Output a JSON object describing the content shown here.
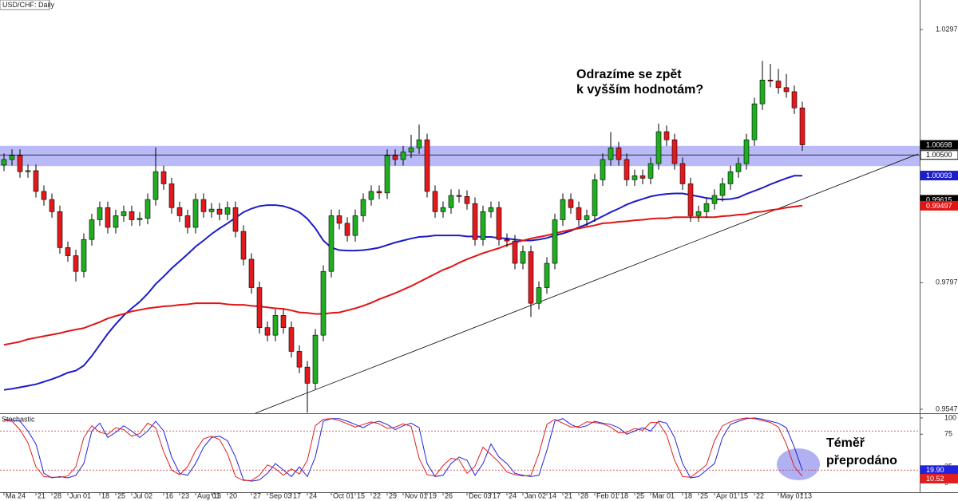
{
  "chart_data": {
    "type": "candlestick",
    "title": "USD/CHF: Daily",
    "categories": [
      "Ma 24",
      null,
      null,
      null,
      "21",
      null,
      "28",
      null,
      "Jun 01",
      null,
      null,
      null,
      "18",
      null,
      "25",
      null,
      "Jul 02",
      null,
      null,
      null,
      "16",
      null,
      "23",
      null,
      "Aug 01",
      null,
      "13",
      null,
      "20",
      null,
      null,
      "27",
      null,
      "Sep 03",
      null,
      null,
      "17",
      null,
      "24",
      null,
      null,
      "Oct 01",
      null,
      null,
      "15",
      null,
      "22",
      null,
      "29",
      null,
      "Nov 01",
      null,
      null,
      "19",
      null,
      "26",
      null,
      null,
      "Dec 03",
      null,
      null,
      "17",
      null,
      "24",
      null,
      "Jan 02",
      null,
      null,
      "14",
      null,
      "21",
      null,
      "28",
      null,
      "Feb 01",
      null,
      null,
      "18",
      null,
      "25",
      null,
      "Mar 01",
      null,
      null,
      null,
      "18",
      null,
      "25",
      null,
      "Apr 01",
      null,
      null,
      "15",
      null,
      "22",
      null,
      null,
      "May 01",
      null,
      null,
      "13"
    ],
    "open": [
      1.003,
      1.0041,
      1.0049,
      1.0017,
      1.0019,
      0.9978,
      0.9962,
      0.9938,
      0.9867,
      0.9851,
      0.982,
      0.9883,
      0.9922,
      0.9946,
      0.9907,
      0.993,
      0.9938,
      0.9922,
      0.9925,
      0.9962,
      1.0017,
      0.9993,
      0.9946,
      0.993,
      0.9907,
      0.9962,
      0.9938,
      0.9943,
      0.9933,
      0.9946,
      0.9899,
      0.9844,
      0.9788,
      0.9709,
      0.9694,
      0.9733,
      0.9709,
      0.9662,
      0.9631,
      0.9599,
      0.9694,
      0.982,
      0.993,
      0.9915,
      0.9891,
      0.993,
      0.9962,
      0.9978,
      0.9975,
      1.0049,
      1.0041,
      1.0056,
      1.0064,
      1.008,
      0.9978,
      0.9938,
      0.9946,
      0.997,
      0.9968,
      0.9954,
      0.9883,
      0.9938,
      0.9946,
      0.9883,
      0.988,
      0.9836,
      0.9859,
      0.9757,
      0.9788,
      0.9836,
      0.9922,
      0.9962,
      0.9946,
      0.9922,
      0.993,
      1.0001,
      1.0041,
      1.0064,
      1.0041,
      1.0001,
      1.0009,
      1.0004,
      1.0033,
      1.0096,
      1.008,
      1.0033,
      0.9993,
      0.993,
      0.9938,
      0.9954,
      0.997,
      0.9993,
      1.0017,
      1.0033,
      1.008,
      1.0151,
      1.0198,
      1.0196,
      1.0183,
      1.0175,
      1.0143
    ],
    "high": [
      1.0053,
      1.0061,
      1.0061,
      1.0031,
      1.0031,
      0.999,
      0.9974,
      0.995,
      0.9879,
      0.9863,
      0.9895,
      0.9934,
      0.9958,
      0.9958,
      0.9942,
      0.995,
      0.995,
      0.9937,
      0.9974,
      1.0065,
      1.0029,
      1.0005,
      0.9958,
      0.9942,
      0.9974,
      0.9974,
      0.9955,
      0.9955,
      0.9958,
      0.9958,
      0.9911,
      0.9856,
      0.98,
      0.9721,
      0.9745,
      0.9745,
      0.9721,
      0.9674,
      0.9643,
      0.9706,
      0.9832,
      0.9942,
      0.9942,
      0.9927,
      0.9942,
      0.9974,
      0.999,
      0.999,
      1.0061,
      1.0061,
      1.0068,
      1.009,
      1.011,
      1.0092,
      0.999,
      0.9958,
      0.9982,
      0.9982,
      0.998,
      0.9966,
      0.995,
      0.9958,
      0.9958,
      0.9895,
      0.9892,
      0.9871,
      0.9871,
      0.98,
      0.9848,
      0.9934,
      0.9974,
      0.9974,
      0.9958,
      0.9942,
      1.0013,
      1.0053,
      1.0095,
      1.0076,
      1.0053,
      1.0021,
      1.0021,
      1.0045,
      1.0112,
      1.0108,
      1.0092,
      1.0045,
      1.0005,
      0.995,
      0.9966,
      0.9982,
      1.0005,
      1.0029,
      1.0045,
      1.0092,
      1.0163,
      1.0236,
      1.023,
      1.022,
      1.021,
      1.0187,
      1.0155
    ],
    "low": [
      1.0018,
      1.0029,
      1.0005,
      1.0005,
      0.9966,
      0.995,
      0.9926,
      0.9855,
      0.9839,
      0.98,
      0.9808,
      0.9871,
      0.991,
      0.9895,
      0.9895,
      0.9918,
      0.991,
      0.991,
      0.9913,
      0.995,
      0.9981,
      0.9934,
      0.9918,
      0.9895,
      0.9895,
      0.9926,
      0.9926,
      0.9921,
      0.9921,
      0.9887,
      0.9832,
      0.9776,
      0.9697,
      0.9682,
      0.9682,
      0.9697,
      0.965,
      0.9619,
      0.9541,
      0.9587,
      0.9682,
      0.9808,
      0.9903,
      0.9879,
      0.9879,
      0.9918,
      0.995,
      0.9963,
      0.9963,
      1.0029,
      1.0029,
      1.0044,
      1.0052,
      0.9966,
      0.9926,
      0.9926,
      0.9934,
      0.9956,
      0.9942,
      0.9871,
      0.9871,
      0.9926,
      0.9871,
      0.9868,
      0.9824,
      0.9824,
      0.973,
      0.9745,
      0.9776,
      0.9824,
      0.991,
      0.9934,
      0.991,
      0.991,
      0.9918,
      0.9989,
      1.0029,
      1.0029,
      0.9989,
      0.9989,
      0.9992,
      0.9992,
      1.0021,
      1.0068,
      1.0021,
      0.9981,
      0.9918,
      0.9918,
      0.9926,
      0.9942,
      0.9958,
      0.9981,
      1.0005,
      1.0021,
      1.0068,
      1.0139,
      1.0184,
      1.0171,
      1.0163,
      1.0131,
      1.0058
    ],
    "close": [
      1.0041,
      1.0049,
      1.0017,
      1.0019,
      0.9978,
      0.9962,
      0.9938,
      0.9867,
      0.9851,
      0.982,
      0.9883,
      0.9922,
      0.9946,
      0.9907,
      0.993,
      0.9938,
      0.9922,
      0.9925,
      0.9962,
      1.0017,
      0.9993,
      0.9946,
      0.993,
      0.9907,
      0.9962,
      0.9938,
      0.9943,
      0.9933,
      0.9946,
      0.9899,
      0.9844,
      0.9788,
      0.9709,
      0.9694,
      0.9733,
      0.9709,
      0.9662,
      0.9631,
      0.9599,
      0.9694,
      0.982,
      0.993,
      0.9915,
      0.9891,
      0.993,
      0.9962,
      0.9978,
      0.9975,
      1.0049,
      1.0041,
      1.0056,
      1.0064,
      1.008,
      0.9978,
      0.9938,
      0.9946,
      0.997,
      0.9968,
      0.9954,
      0.9883,
      0.9938,
      0.9946,
      0.9883,
      0.988,
      0.9836,
      0.9859,
      0.9757,
      0.9788,
      0.9836,
      0.9922,
      0.9962,
      0.9946,
      0.9922,
      0.993,
      1.0001,
      1.0041,
      1.0064,
      1.0041,
      1.0001,
      1.0009,
      1.0004,
      1.0033,
      1.0096,
      1.008,
      1.0033,
      0.9993,
      0.993,
      0.9938,
      0.9954,
      0.997,
      0.9993,
      1.0017,
      1.0033,
      1.008,
      1.0151,
      1.0198,
      1.0196,
      1.0183,
      1.0175,
      1.0143,
      1.007
    ],
    "up_color": "#1fae1f",
    "down_color": "#e3191c",
    "ylim": [
      0.95398,
      1.03561
    ],
    "yticks": [
      0.95477,
      0.97977,
      1.02977
    ],
    "overlays": [
      {
        "color": "#1c1cc8",
        "values": [
          0.9586,
          0.9588,
          0.9591,
          0.9594,
          0.9597,
          0.9602,
          0.9607,
          0.9613,
          0.962,
          0.9624,
          0.9634,
          0.9653,
          0.9675,
          0.9697,
          0.9716,
          0.9733,
          0.9747,
          0.976,
          0.9776,
          0.9795,
          0.981,
          0.9826,
          0.984,
          0.9854,
          0.9869,
          0.9881,
          0.9894,
          0.9905,
          0.9915,
          0.9926,
          0.9937,
          0.9944,
          0.9949,
          0.9951,
          0.9951,
          0.9949,
          0.9944,
          0.9937,
          0.9924,
          0.9905,
          0.9881,
          0.9867,
          0.9862,
          0.9861,
          0.9861,
          0.9862,
          0.9864,
          0.9867,
          0.9872,
          0.9877,
          0.9881,
          0.9885,
          0.9888,
          0.9889,
          0.9891,
          0.9891,
          0.9891,
          0.9891,
          0.9889,
          0.9889,
          0.9888,
          0.9888,
          0.9886,
          0.9885,
          0.9883,
          0.9881,
          0.9881,
          0.9883,
          0.9886,
          0.9891,
          0.9895,
          0.99,
          0.9907,
          0.9913,
          0.9921,
          0.9929,
          0.9937,
          0.9944,
          0.9952,
          0.9958,
          0.9963,
          0.9968,
          0.9971,
          0.9973,
          0.9974,
          0.9974,
          0.9971,
          0.9968,
          0.9965,
          0.9963,
          0.9962,
          0.9963,
          0.9966,
          0.9973,
          0.9979,
          0.9985,
          0.9992,
          0.9998,
          1.0004,
          1.0009,
          1.0009
        ]
      },
      {
        "color": "#e01414",
        "values": [
          0.9675,
          0.9678,
          0.9681,
          0.9686,
          0.9689,
          0.9692,
          0.9695,
          0.9698,
          0.9702,
          0.9705,
          0.9708,
          0.9714,
          0.972,
          0.9727,
          0.9732,
          0.9736,
          0.9741,
          0.9744,
          0.9747,
          0.9749,
          0.9751,
          0.9752,
          0.9754,
          0.9755,
          0.9757,
          0.9757,
          0.9757,
          0.9757,
          0.9755,
          0.9754,
          0.9754,
          0.9752,
          0.9751,
          0.9749,
          0.9747,
          0.9746,
          0.9743,
          0.9739,
          0.9738,
          0.9736,
          0.9736,
          0.9738,
          0.9739,
          0.9743,
          0.9747,
          0.9752,
          0.9758,
          0.9765,
          0.9771,
          0.9777,
          0.9784,
          0.9791,
          0.9799,
          0.9807,
          0.9815,
          0.9823,
          0.9829,
          0.9837,
          0.9844,
          0.985,
          0.9856,
          0.9861,
          0.9866,
          0.9872,
          0.9877,
          0.9881,
          0.9885,
          0.9888,
          0.9891,
          0.9895,
          0.9899,
          0.9902,
          0.9905,
          0.9908,
          0.9911,
          0.9915,
          0.9916,
          0.9918,
          0.9919,
          0.9921,
          0.9922,
          0.9924,
          0.9925,
          0.9925,
          0.9927,
          0.9927,
          0.9927,
          0.9927,
          0.9927,
          0.9927,
          0.9929,
          0.993,
          0.9932,
          0.9933,
          0.9937,
          0.9938,
          0.9941,
          0.9943,
          0.9946,
          0.9948,
          0.995
        ]
      }
    ],
    "zone": [
      1.0028,
      1.0068
    ],
    "zone_color": "#8c8cf5",
    "level": {
      "value": 1.005,
      "label": "1.00500"
    },
    "trendline": {
      "x": [
        31.5,
        114.5
      ],
      "y": [
        0.954,
        1.0052
      ]
    },
    "price_labels": [
      {
        "value": 1.00698,
        "color": "#000000"
      },
      {
        "value": 1.00093,
        "color": "#1c1cc8"
      },
      {
        "value": 0.99615,
        "color": "#000000"
      },
      {
        "value": 0.99497,
        "color": "#e01414"
      }
    ],
    "annotations": [
      {
        "lines": [
          "Odrazíme se zpět",
          "k vyšším hodnotám?"
        ]
      },
      {
        "lines": [
          "Téměř",
          "přeprodáno"
        ]
      }
    ],
    "stochastic": {
      "title": "Stochastic",
      "ylim": [
        -14,
        106
      ],
      "yticks": [
        0,
        25,
        75,
        100
      ],
      "levels": [
        20,
        80
      ],
      "series": [
        {
          "color": "#2222dd",
          "values": [
            98,
            97,
            95,
            80,
            60,
            15,
            8,
            10,
            8,
            12,
            30,
            80,
            92,
            70,
            78,
            88,
            80,
            70,
            80,
            95,
            80,
            40,
            15,
            12,
            30,
            55,
            70,
            72,
            65,
            40,
            5,
            3,
            5,
            15,
            30,
            20,
            10,
            25,
            10,
            40,
            95,
            99,
            99,
            95,
            90,
            85,
            92,
            95,
            90,
            82,
            88,
            92,
            85,
            30,
            10,
            12,
            30,
            40,
            35,
            12,
            30,
            60,
            40,
            30,
            15,
            12,
            10,
            12,
            50,
            95,
            99,
            90,
            85,
            88,
            95,
            92,
            90,
            85,
            75,
            80,
            85,
            80,
            95,
            92,
            70,
            30,
            8,
            10,
            20,
            30,
            70,
            90,
            95,
            99,
            100,
            98,
            95,
            92,
            85,
            55,
            19.9
          ]
        },
        {
          "color": "#e02020",
          "values": [
            97,
            95,
            82,
            62,
            25,
            10,
            9,
            9,
            11,
            25,
            70,
            88,
            78,
            75,
            85,
            82,
            72,
            76,
            92,
            85,
            48,
            20,
            13,
            25,
            50,
            68,
            72,
            67,
            45,
            10,
            4,
            4,
            12,
            28,
            22,
            12,
            22,
            14,
            35,
            88,
            98,
            99,
            96,
            91,
            86,
            90,
            94,
            91,
            84,
            86,
            91,
            87,
            38,
            13,
            11,
            27,
            38,
            36,
            15,
            26,
            55,
            44,
            32,
            17,
            13,
            11,
            12,
            45,
            90,
            98,
            92,
            86,
            87,
            94,
            93,
            91,
            86,
            77,
            78,
            84,
            81,
            93,
            93,
            74,
            35,
            10,
            9,
            18,
            28,
            65,
            88,
            94,
            98,
            100,
            99,
            96,
            93,
            86,
            60,
            25,
            10.52
          ]
        }
      ],
      "price_labels": [
        {
          "value": 19.9,
          "label": "19.90",
          "color": "#2222dd"
        },
        {
          "value": 10.52,
          "color": "#e02020"
        }
      ]
    }
  }
}
